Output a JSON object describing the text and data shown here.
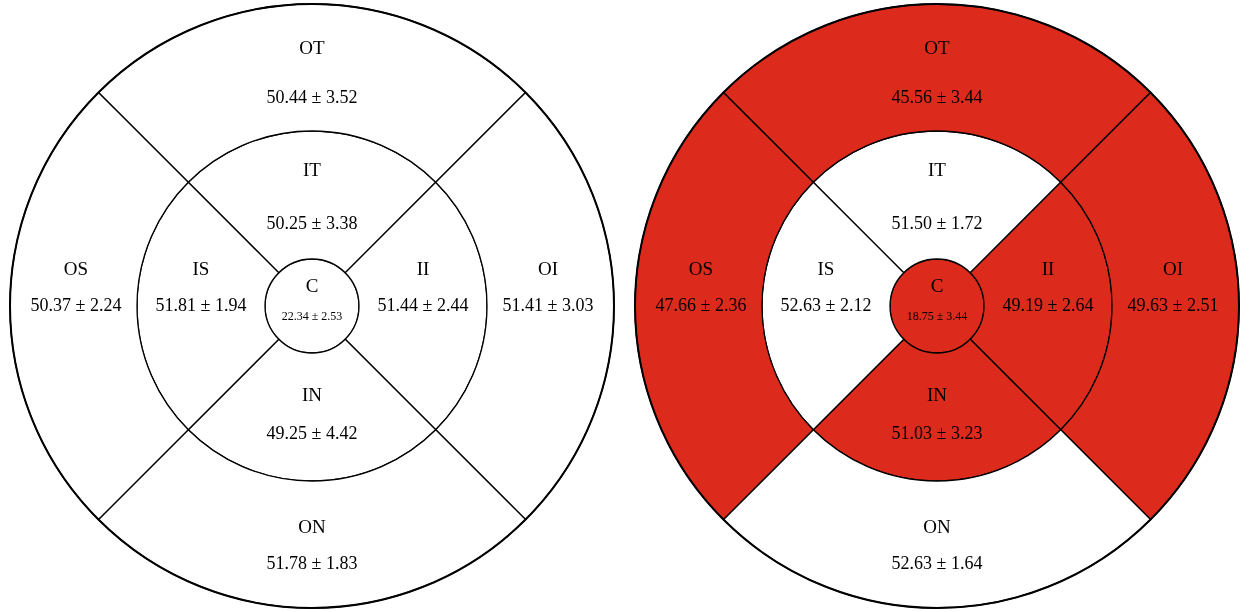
{
  "chart_data": [
    {
      "type": "other",
      "categories": [
        "C",
        "IT",
        "II",
        "IN",
        "IS",
        "OT",
        "OI",
        "ON",
        "OS"
      ],
      "values": [
        22.34,
        50.25,
        51.44,
        49.25,
        51.81,
        50.44,
        51.41,
        51.78,
        50.37
      ],
      "value_labels": [
        "22.34 ± 2.53",
        "50.25 ± 3.38",
        "51.44 ± 2.44",
        "49.25 ± 4.42",
        "51.81 ± 1.94",
        "50.44 ± 3.52",
        "51.41 ± 3.03",
        "51.78 ± 1.83",
        "50.37 ± 2.24"
      ],
      "colors": [
        "#ffffff",
        "#ffffff",
        "#ffffff",
        "#ffffff",
        "#ffffff",
        "#ffffff",
        "#ffffff",
        "#ffffff",
        "#ffffff"
      ]
    },
    {
      "type": "other",
      "categories": [
        "C",
        "IT",
        "II",
        "IN",
        "IS",
        "OT",
        "OI",
        "ON",
        "OS"
      ],
      "values": [
        18.75,
        51.5,
        49.19,
        51.03,
        52.63,
        45.56,
        49.63,
        52.63,
        47.66
      ],
      "value_labels": [
        "18.75 ± 3.44",
        "51.50 ± 1.72",
        "49.19 ± 2.64",
        "51.03 ± 3.23",
        "52.63 ± 2.12",
        "45.56 ± 3.44",
        "49.63 ± 2.51",
        "52.63 ± 1.64",
        "47.66 ± 2.36"
      ],
      "colors": [
        "#dc2a1c",
        "#ffffff",
        "#dc2a1c",
        "#dc2a1c",
        "#ffffff",
        "#dc2a1c",
        "#dc2a1c",
        "#ffffff",
        "#dc2a1c"
      ]
    }
  ]
}
